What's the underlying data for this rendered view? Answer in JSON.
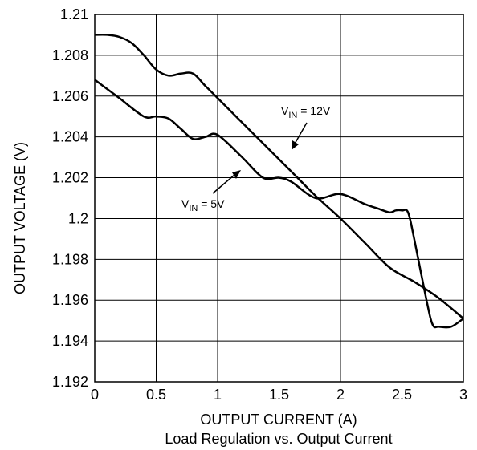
{
  "chart_data": {
    "type": "line",
    "title": "Load Regulation vs. Output Current",
    "xlabel": "OUTPUT CURRENT (A)",
    "ylabel": "OUTPUT VOLTAGE (V)",
    "xlim": [
      0,
      3
    ],
    "ylim": [
      1.192,
      1.21
    ],
    "xticks": [
      0,
      0.5,
      1,
      1.5,
      2,
      2.5,
      3
    ],
    "xtick_labels": [
      "0",
      "0.5",
      "1",
      "1.5",
      "2",
      "2.5",
      "3"
    ],
    "yticks": [
      1.192,
      1.194,
      1.196,
      1.198,
      1.2,
      1.202,
      1.204,
      1.206,
      1.208,
      1.21
    ],
    "ytick_labels": [
      "1.192",
      "1.194",
      "1.196",
      "1.198",
      "1.2",
      "1.202",
      "1.204",
      "1.206",
      "1.208",
      "1.21"
    ],
    "grid": true,
    "series": [
      {
        "name": "VIN = 12V",
        "x": [
          0,
          0.1,
          0.2,
          0.3,
          0.4,
          0.5,
          0.6,
          0.7,
          0.8,
          0.9,
          1.0,
          1.2,
          1.4,
          1.6,
          1.8,
          2.0,
          2.2,
          2.4,
          2.6,
          2.8,
          3.0
        ],
        "y": [
          1.209,
          1.209,
          1.2089,
          1.2086,
          1.208,
          1.2073,
          1.207,
          1.2071,
          1.2071,
          1.2065,
          1.2059,
          1.2047,
          1.2035,
          1.2023,
          1.2011,
          1.2,
          1.1988,
          1.1976,
          1.1969,
          1.1961,
          1.1951
        ]
      },
      {
        "name": "VIN = 5V",
        "x": [
          0,
          0.2,
          0.4,
          0.5,
          0.6,
          0.7,
          0.8,
          0.9,
          1.0,
          1.2,
          1.37,
          1.5,
          1.6,
          1.8,
          2.0,
          2.2,
          2.3,
          2.4,
          2.45,
          2.5,
          2.55,
          2.6,
          2.7,
          2.75,
          2.8,
          2.9,
          3.0
        ],
        "y": [
          1.2068,
          1.2059,
          1.205,
          1.205,
          1.2049,
          1.2044,
          1.2039,
          1.204,
          1.2041,
          1.203,
          1.202,
          1.202,
          1.2018,
          1.201,
          1.2012,
          1.2007,
          1.2005,
          1.2003,
          1.2004,
          1.2004,
          1.2003,
          1.199,
          1.196,
          1.1948,
          1.1947,
          1.1947,
          1.1951
        ]
      }
    ],
    "annotations": [
      {
        "text_main": "V",
        "text_sub": "IN",
        "text_tail": " = 12V",
        "target_series": 0
      },
      {
        "text_main": "V",
        "text_sub": "IN",
        "text_tail": " = 5V",
        "target_series": 1
      }
    ]
  }
}
